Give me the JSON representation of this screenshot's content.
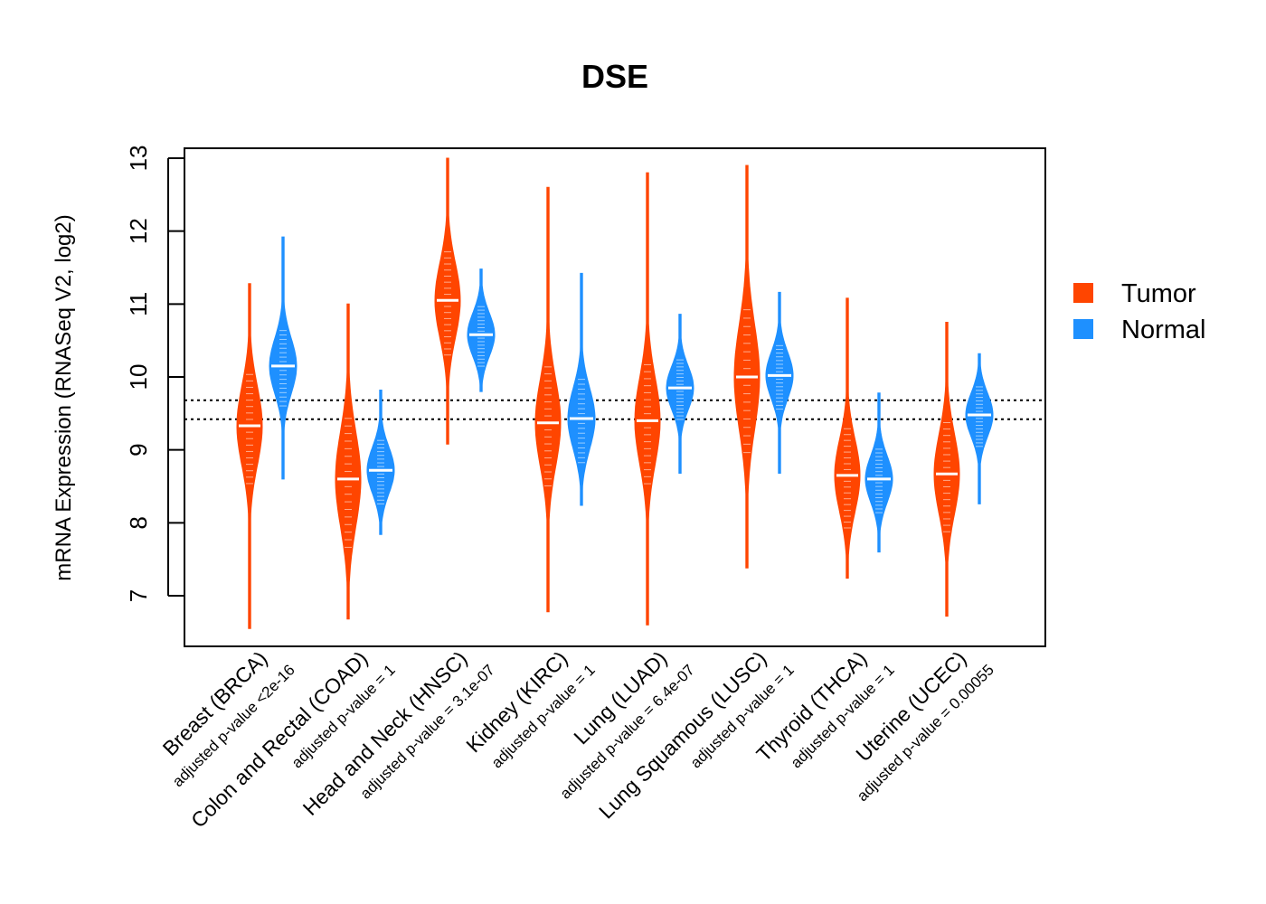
{
  "chart_data": {
    "type": "violin",
    "title": "DSE",
    "xlabel": "",
    "ylabel": "mRNA Expression (RNASeq V2, log2)",
    "ylim": [
      6.3,
      13.15
    ],
    "yticks": [
      7,
      8,
      9,
      10,
      11,
      12,
      13
    ],
    "reference_lines": [
      9.42,
      9.68
    ],
    "legend": {
      "position": "right",
      "entries": [
        {
          "name": "Tumor",
          "color": "#FF4500"
        },
        {
          "name": "Normal",
          "color": "#1E90FF"
        }
      ]
    },
    "categories": [
      "Breast (BRCA)",
      "Colon and Rectal (COAD)",
      "Head and Neck (HNSC)",
      "Kidney (KIRC)",
      "Lung (LUAD)",
      "Lung Squamous (LUSC)",
      "Thyroid (THCA)",
      "Uterine (UCEC)"
    ],
    "pvalue_labels": [
      "adjusted p-value <2e-16",
      "adjusted p-value = 1",
      "adjusted p-value = 3.1e-07",
      "adjusted p-value = 1",
      "adjusted p-value = 6.4e-07",
      "adjusted p-value = 1",
      "adjusted p-value = 1",
      "adjusted p-value = 0.00055"
    ],
    "series": [
      {
        "name": "Tumor",
        "color": "#FF4500",
        "min": [
          6.55,
          6.68,
          9.08,
          6.78,
          6.6,
          7.38,
          7.24,
          6.72
        ],
        "max": [
          11.28,
          11.0,
          13.0,
          12.6,
          12.8,
          12.9,
          11.08,
          10.75
        ],
        "median": [
          9.33,
          8.6,
          11.05,
          9.37,
          9.4,
          10.0,
          8.65,
          8.67
        ],
        "spread": [
          0.55,
          0.65,
          0.52,
          0.6,
          0.6,
          0.72,
          0.5,
          0.55
        ]
      },
      {
        "name": "Normal",
        "color": "#1E90FF",
        "min": [
          8.6,
          7.84,
          9.8,
          8.24,
          8.68,
          8.68,
          7.6,
          8.26
        ],
        "max": [
          11.92,
          9.82,
          11.48,
          11.42,
          10.86,
          11.16,
          9.78,
          10.32
        ],
        "median": [
          10.15,
          8.72,
          10.58,
          9.43,
          9.85,
          10.02,
          8.6,
          9.48
        ],
        "spread": [
          0.38,
          0.32,
          0.3,
          0.42,
          0.3,
          0.32,
          0.32,
          0.3
        ]
      }
    ]
  }
}
